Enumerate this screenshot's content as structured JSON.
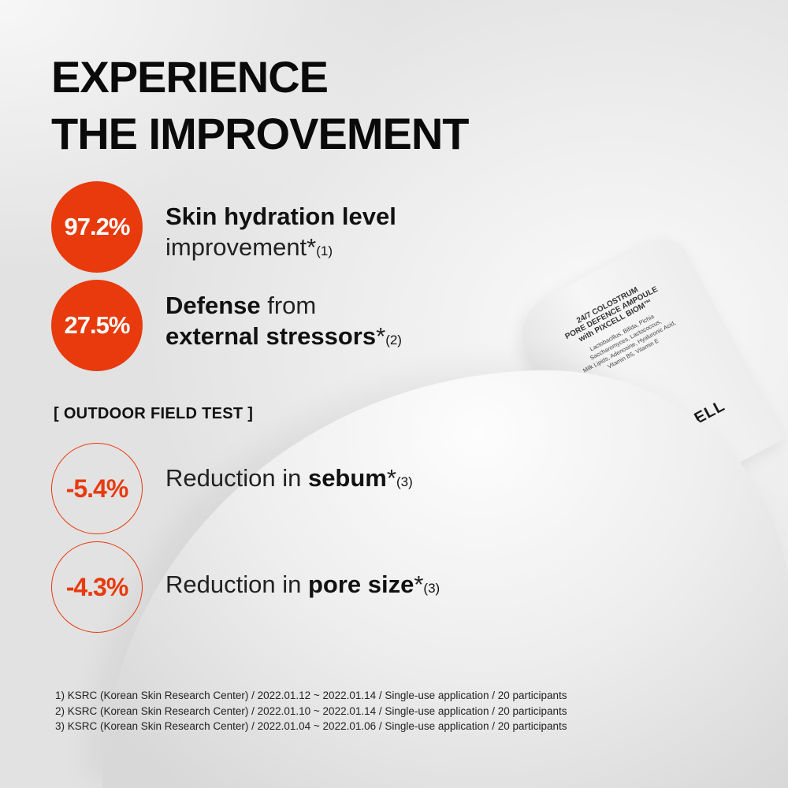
{
  "headline": {
    "line1": "EXPERIENCE",
    "line2": "THE IMPROVEMENT"
  },
  "colors": {
    "accent": "#e83a0c",
    "text": "#111111",
    "background": "#ececec"
  },
  "highlights": [
    {
      "value": "97.2%",
      "bold": "Skin hydration level",
      "light": "improvement*",
      "ref": "(1)"
    },
    {
      "value": "27.5%",
      "bold": "Defense",
      "light": " from",
      "bold2": "external stressors",
      "star": "*",
      "ref": "(2)"
    }
  ],
  "section_label": "[ OUTDOOR FIELD TEST ]",
  "field_results": [
    {
      "value": "-5.4%",
      "prefix": "Reduction in ",
      "bold": "sebum",
      "star": "*",
      "ref": "(3)"
    },
    {
      "value": "-4.3%",
      "prefix": "Reduction in ",
      "bold": "pore size",
      "star": "*",
      "ref": "(3)"
    }
  ],
  "footnotes": [
    "1) KSRC (Korean Skin Research Center) / 2022.01.12 ~ 2022.01.14 / Single-use application / 20 participants",
    "2) KSRC (Korean Skin Research Center) / 2022.01.10 ~ 2022.01.14 / Single-use application / 20 participants",
    "3) KSRC (Korean Skin Research Center) / 2022.01.04 ~ 2022.01.06 / Single-use application / 20 participants"
  ],
  "product": {
    "name_lines": [
      "24/7 COLOSTRUM",
      "PORE DEFENCE AMPOULE",
      "with PIXCELL BIOM™"
    ],
    "ingredients_lines": [
      "Lactobacillus, Bifida, Pichia",
      "Saccharomyces, Lactococcus,",
      "Milk Lipids, Adenosine, Hyaluronic Acid,",
      "Vitamin B5, Vitamin E"
    ],
    "brand": "PURCELL"
  }
}
